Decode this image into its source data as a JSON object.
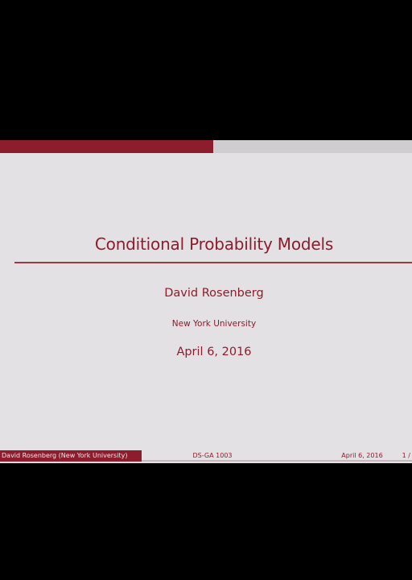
{
  "slide": {
    "title": "Conditional Probability Models",
    "author": "David Rosenberg",
    "institution": "New York University",
    "date": "April 6, 2016"
  },
  "footer": {
    "left": "David Rosenberg (New York University)",
    "center": "DS-GA 1003",
    "date": "April 6, 2016",
    "page": "1 /"
  },
  "colors": {
    "accent": "#8d1c2c",
    "slide_background": "#e4e1e4",
    "frame_background": "#000000"
  }
}
